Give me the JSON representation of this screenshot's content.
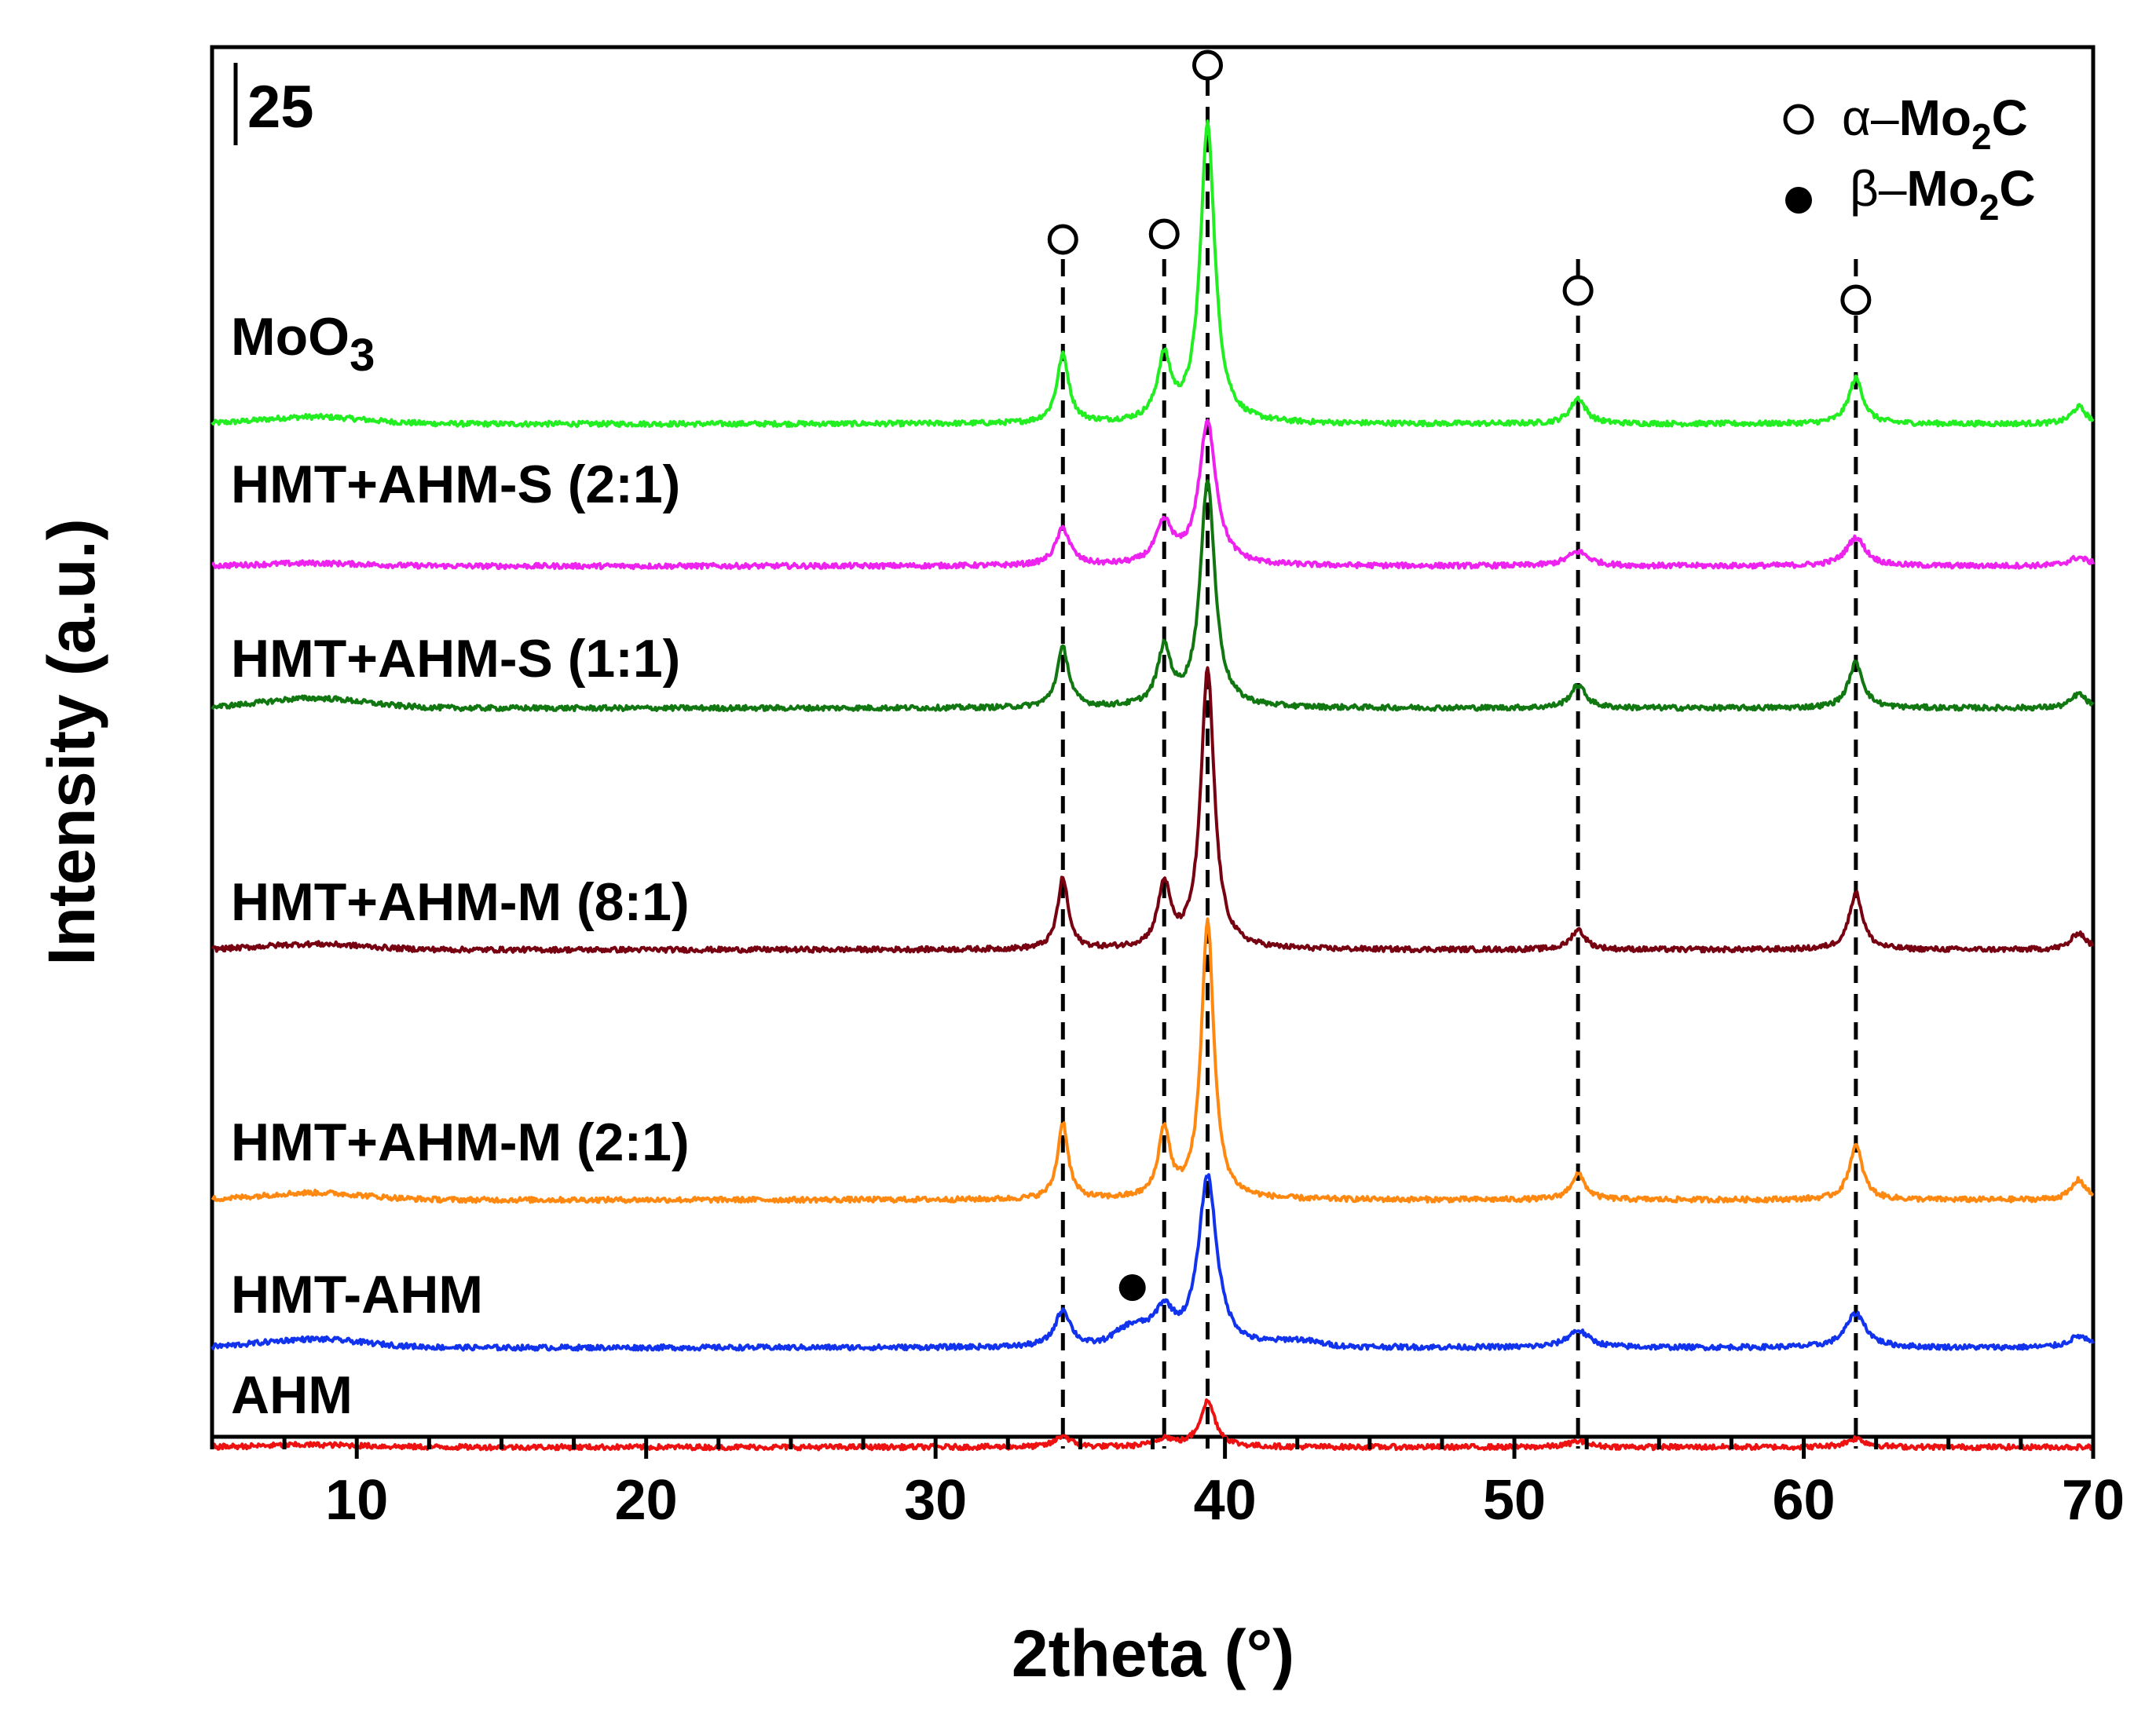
{
  "chart_data": {
    "type": "line",
    "panel_label": "25",
    "xlabel": "2theta (°)",
    "ylabel": "Intensity (a.u.)",
    "xlim": [
      5,
      70
    ],
    "x_major_ticks": [
      10,
      20,
      30,
      40,
      50,
      60,
      70
    ],
    "x_minor_step": 2.5,
    "x_tick_labels": [
      "10",
      "20",
      "30",
      "40",
      "50",
      "60",
      "70"
    ],
    "y_ticks_shown": false,
    "reference_lines_2theta": [
      34.4,
      37.9,
      39.4,
      52.2,
      61.8
    ],
    "legend": [
      {
        "marker": "open-circle",
        "greek": "α",
        "text": "Mo",
        "sub": "2",
        "tail": "C",
        "meaning": "alpha-Mo2C"
      },
      {
        "marker": "filled-circle",
        "greek": "β",
        "text": "Mo",
        "sub": "2",
        "tail": "C",
        "meaning": "beta-Mo2C"
      }
    ],
    "open_markers_2theta": [
      34.4,
      37.9,
      39.4,
      52.2,
      61.8
    ],
    "filled_marker": {
      "two_theta": 36.8,
      "series": "HMT-AHM"
    },
    "series": [
      {
        "name": "MoO3",
        "label_main": "MoO",
        "label_sub": "3",
        "color": "#22ee22",
        "baseline": 1.0,
        "hump": [
          8.5,
          0.025,
          2.5
        ],
        "peaks": [
          [
            34.4,
            0.24,
            0.25
          ],
          [
            37.9,
            0.22,
            0.28
          ],
          [
            39.4,
            1.05,
            0.3
          ],
          [
            52.2,
            0.09,
            0.32
          ],
          [
            61.8,
            0.16,
            0.3
          ],
          [
            69.5,
            0.06,
            0.3
          ]
        ]
      },
      {
        "name": "HMT+AHM-S (2:1)",
        "label_main": "HMT+AHM-S (2:1)",
        "label_sub": "",
        "color": "#ee22ee",
        "baseline": 0.5,
        "hump": [
          8.5,
          0.01,
          2.5
        ],
        "peaks": [
          [
            34.4,
            0.13,
            0.3
          ],
          [
            37.9,
            0.14,
            0.35
          ],
          [
            39.4,
            0.5,
            0.36
          ],
          [
            52.2,
            0.05,
            0.45
          ],
          [
            61.8,
            0.1,
            0.4
          ],
          [
            69.5,
            0.03,
            0.4
          ]
        ]
      },
      {
        "name": "HMT+AHM-S (1:1)",
        "label_main": "HMT+AHM-S (1:1)",
        "label_sub": "",
        "color": "#117711",
        "baseline": 0.0,
        "hump": [
          8.5,
          0.035,
          2.5
        ],
        "peaks": [
          [
            34.4,
            0.21,
            0.25
          ],
          [
            37.9,
            0.2,
            0.28
          ],
          [
            39.4,
            0.8,
            0.3
          ],
          [
            52.2,
            0.08,
            0.32
          ],
          [
            61.8,
            0.16,
            0.3
          ],
          [
            69.5,
            0.05,
            0.3
          ]
        ]
      },
      {
        "name": "HMT+AHM-M (8:1)",
        "label_main": "HMT+AHM-M (8:1)",
        "label_sub": "",
        "color": "#770011",
        "baseline": -0.85,
        "hump": [
          8.5,
          0.02,
          2.5
        ],
        "peaks": [
          [
            34.4,
            0.25,
            0.22
          ],
          [
            37.9,
            0.22,
            0.26
          ],
          [
            39.4,
            0.98,
            0.28
          ],
          [
            52.2,
            0.07,
            0.3
          ],
          [
            61.8,
            0.2,
            0.28
          ],
          [
            69.5,
            0.06,
            0.3
          ]
        ]
      },
      {
        "name": "HMT+AHM-M (2:1)",
        "label_main": "HMT+AHM-M (2:1)",
        "label_sub": "",
        "color": "#ff8811",
        "baseline": -1.73,
        "hump": [
          8.5,
          0.025,
          2.5
        ],
        "peaks": [
          [
            34.4,
            0.27,
            0.22
          ],
          [
            37.9,
            0.24,
            0.24
          ],
          [
            39.4,
            0.98,
            0.26
          ],
          [
            52.2,
            0.09,
            0.3
          ],
          [
            61.8,
            0.19,
            0.28
          ],
          [
            69.5,
            0.07,
            0.3
          ]
        ]
      },
      {
        "name": "HMT-AHM",
        "label_main": "HMT-AHM",
        "label_sub": "",
        "color": "#1133ee",
        "baseline": -2.25,
        "hump": [
          8.5,
          0.03,
          2.5
        ],
        "extra_humps": [
          [
            36.8,
            0.06,
            0.8
          ],
          [
            42.5,
            0.02,
            1.0
          ]
        ],
        "peaks": [
          [
            34.4,
            0.13,
            0.32
          ],
          [
            37.9,
            0.12,
            0.4
          ],
          [
            39.4,
            0.6,
            0.38
          ],
          [
            52.2,
            0.06,
            0.45
          ],
          [
            61.8,
            0.12,
            0.42
          ],
          [
            69.5,
            0.04,
            0.4
          ]
        ]
      },
      {
        "name": "AHM",
        "label_main": "AHM",
        "label_sub": "",
        "color": "#ee1111",
        "baseline": -2.6,
        "hump": [
          8.5,
          0.008,
          2.5
        ],
        "peaks": [
          [
            34.4,
            0.04,
            0.3
          ],
          [
            37.9,
            0.03,
            0.35
          ],
          [
            39.4,
            0.16,
            0.32
          ],
          [
            52.2,
            0.02,
            0.4
          ],
          [
            61.8,
            0.03,
            0.4
          ]
        ]
      }
    ]
  }
}
